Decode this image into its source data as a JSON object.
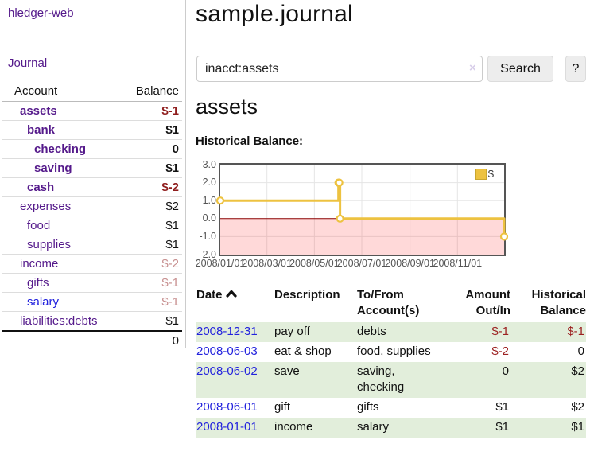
{
  "app": {
    "title": "hledger-web"
  },
  "sidebar": {
    "journal_link": "Journal",
    "accounts_table": {
      "headers": {
        "account": "Account",
        "balance": "Balance"
      },
      "rows": [
        {
          "account": "assets",
          "indent": 1,
          "bold": true,
          "link_color": "purple",
          "balance": "$-1",
          "balance_style": "neg-strong"
        },
        {
          "account": "bank",
          "indent": 2,
          "bold": true,
          "link_color": "purple",
          "balance": "$1",
          "balance_style": "pos"
        },
        {
          "account": "checking",
          "indent": 3,
          "bold": true,
          "link_color": "purple",
          "balance": "0",
          "balance_style": "pos"
        },
        {
          "account": "saving",
          "indent": 3,
          "bold": true,
          "link_color": "purple",
          "balance": "$1",
          "balance_style": "pos"
        },
        {
          "account": "cash",
          "indent": 2,
          "bold": true,
          "link_color": "purple",
          "balance": "$-2",
          "balance_style": "neg-strong"
        },
        {
          "account": "expenses",
          "indent": 1,
          "bold": false,
          "link_color": "purple",
          "balance": "$2",
          "balance_style": "pos"
        },
        {
          "account": "food",
          "indent": 2,
          "bold": false,
          "link_color": "purple",
          "balance": "$1",
          "balance_style": "pos"
        },
        {
          "account": "supplies",
          "indent": 2,
          "bold": false,
          "link_color": "purple",
          "balance": "$1",
          "balance_style": "pos"
        },
        {
          "account": "income",
          "indent": 1,
          "bold": false,
          "link_color": "purple",
          "balance": "$-2",
          "balance_style": "neg-faded"
        },
        {
          "account": "gifts",
          "indent": 2,
          "bold": false,
          "link_color": "purple",
          "balance": "$-1",
          "balance_style": "neg-faded"
        },
        {
          "account": "salary",
          "indent": 2,
          "bold": false,
          "link_color": "blue",
          "balance": "$-1",
          "balance_style": "neg-faded"
        },
        {
          "account": "liabilities:debts",
          "indent": 1,
          "bold": false,
          "link_color": "purple",
          "balance": "$1",
          "balance_style": "pos"
        }
      ],
      "total": "0"
    }
  },
  "main": {
    "title": "sample.journal",
    "search": {
      "value": "inacct:assets",
      "clear_icon": "×",
      "button_label": "Search",
      "help_label": "?"
    },
    "account_heading": "assets",
    "chart_heading": "Historical Balance:"
  },
  "chart_data": {
    "type": "line",
    "step": true,
    "title": "Historical Balance:",
    "series": [
      {
        "name": "$",
        "color": "#EDC240",
        "points": [
          [
            "2008-01-01",
            1
          ],
          [
            "2008-06-01",
            2
          ],
          [
            "2008-06-02",
            2
          ],
          [
            "2008-06-03",
            0
          ],
          [
            "2008-12-31",
            -1
          ]
        ]
      }
    ],
    "x_range": [
      "2008-01-01",
      "2008-12-31"
    ],
    "ylim": [
      -2,
      3
    ],
    "y_ticks": [
      "3.0",
      "2.0",
      "1.0",
      "0.0",
      "-1.0",
      "-2.0"
    ],
    "x_ticks": [
      "2008/01/01",
      "2008/03/01",
      "2008/05/01",
      "2008/07/01",
      "2008/09/01",
      "2008/11/01"
    ],
    "grid": true,
    "gridline_color": "#e5e5e5",
    "negative_region_color": "rgba(255,0,0,0.15)",
    "zero_line_color": "#8b0000",
    "marker": {
      "fill": "#ffffff",
      "stroke": "#EDC240"
    },
    "legend": {
      "position": "top-right",
      "label": "$",
      "swatch_color": "#EDC240"
    }
  },
  "register_table": {
    "headers": {
      "date": "Date",
      "description": "Description",
      "accounts": "To/From\nAccount(s)",
      "amount": "Amount\nOut/In",
      "balance": "Historical\nBalance"
    },
    "rows": [
      {
        "date": "2008-12-31",
        "description": "pay off",
        "accounts": "debts",
        "amount": "$-1",
        "amount_neg": true,
        "balance": "$-1",
        "balance_neg": true,
        "shaded": true
      },
      {
        "date": "2008-06-03",
        "description": "eat & shop",
        "accounts": "food, supplies",
        "amount": "$-2",
        "amount_neg": true,
        "balance": "0",
        "balance_neg": false,
        "shaded": false
      },
      {
        "date": "2008-06-02",
        "description": "save",
        "accounts": "saving,\nchecking",
        "amount": "0",
        "amount_neg": false,
        "balance": "$2",
        "balance_neg": false,
        "shaded": true
      },
      {
        "date": "2008-06-01",
        "description": "gift",
        "accounts": "gifts",
        "amount": "$1",
        "amount_neg": false,
        "balance": "$2",
        "balance_neg": false,
        "shaded": false
      },
      {
        "date": "2008-01-01",
        "description": "income",
        "accounts": "salary",
        "amount": "$1",
        "amount_neg": false,
        "balance": "$1",
        "balance_neg": false,
        "shaded": true
      }
    ]
  }
}
